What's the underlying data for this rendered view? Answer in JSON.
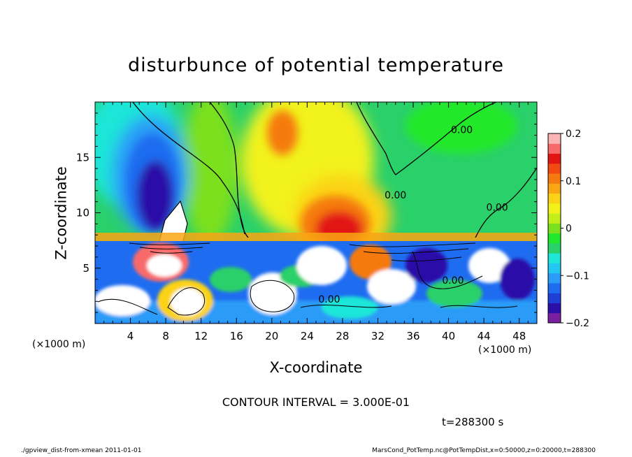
{
  "chart_data": {
    "type": "heatmap",
    "title": "disturbunce of potential temperature",
    "xlabel": "X-coordinate",
    "ylabel": "Z-coordinate",
    "x_unit_label": "(×1000 m)",
    "xlim": [
      0,
      50
    ],
    "ylim": [
      0,
      20
    ],
    "x_ticks": [
      4,
      8,
      12,
      16,
      20,
      24,
      28,
      32,
      36,
      40,
      44,
      48
    ],
    "y_ticks": [
      5,
      10,
      15
    ],
    "colorbar": {
      "range": [
        -0.2,
        0.2
      ],
      "ticks": [
        {
          "value": 0.2,
          "label": "0.2"
        },
        {
          "value": 0.1,
          "label": "0.1"
        },
        {
          "value": 0.0,
          "label": "0"
        },
        {
          "value": -0.1,
          "label": "−0.1"
        },
        {
          "value": -0.2,
          "label": "−0.2"
        }
      ],
      "colors": [
        "#7a1fa0",
        "#2a0fa8",
        "#1f3fd6",
        "#1e6cf0",
        "#2a9cf7",
        "#22c8f2",
        "#1ee6d8",
        "#2ad06a",
        "#20e82a",
        "#7be01e",
        "#c2ef1a",
        "#f2f21a",
        "#fbd316",
        "#f9a514",
        "#f57a10",
        "#f24a10",
        "#e31414",
        "#f86a6a",
        "#fab4b4"
      ]
    },
    "contour_labels": [
      {
        "x": 34,
        "y": 11.3,
        "text": "0.00"
      },
      {
        "x": 41.5,
        "y": 17.2,
        "text": "0.00"
      },
      {
        "x": 45.5,
        "y": 10.2,
        "text": "0.00"
      },
      {
        "x": 40.5,
        "y": 3.6,
        "text": "0.00"
      },
      {
        "x": 26.5,
        "y": 1.9,
        "text": "0.00"
      }
    ],
    "field_features": [
      {
        "x": 7.5,
        "z": 13,
        "value": -0.17
      },
      {
        "x": 8.5,
        "z": 10,
        "value": -0.21
      },
      {
        "x": 20.5,
        "z": 17,
        "value": 0.1
      },
      {
        "x": 27.5,
        "z": 9.5,
        "value": 0.17
      },
      {
        "x": 42,
        "z": 15,
        "value": 0.0
      }
    ],
    "contour_interval": "CONTOUR INTERVAL = 3.000E-01",
    "time_label": "t=288300 s"
  },
  "footer": {
    "left": "./gpview_dist-from-xmean   2011-01-01",
    "right": "MarsCond_PotTemp.nc@PotTempDist,x=0:50000,z=0:20000,t=288300"
  }
}
